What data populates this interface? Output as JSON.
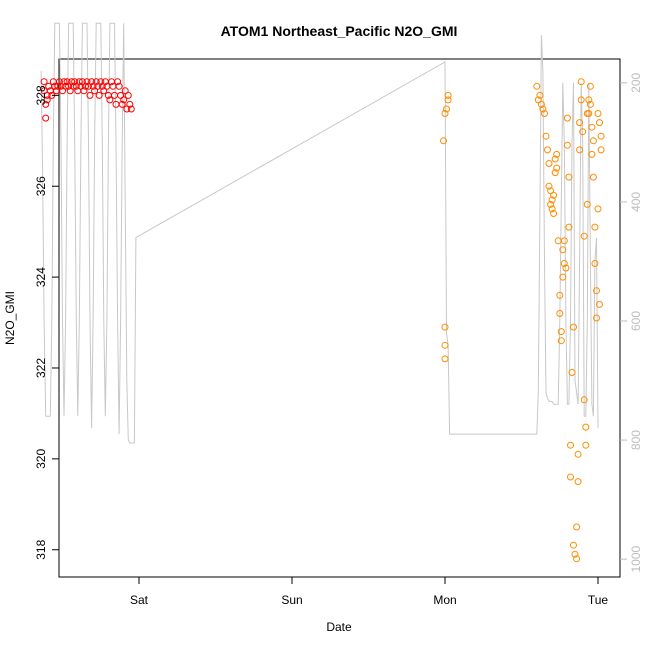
{
  "chart_data": {
    "type": "scatter",
    "title": "ATOM1 Northeast_Pacific N2O_GMI",
    "xlabel": "Date",
    "ylabel": "N2O_GMI",
    "x_ticks": [
      "Sat",
      "Sun",
      "Mon",
      "Tue"
    ],
    "ylim": [
      317.4,
      328.8
    ],
    "y_ticks": [
      318,
      320,
      322,
      324,
      326,
      328
    ],
    "y2lim": [
      1030,
      160
    ],
    "y2_ticks": [
      200,
      400,
      600,
      800,
      1000
    ],
    "colors": {
      "series_red": "#ff0000",
      "series_orange": "#ff8c00",
      "line": "#c8c8c8",
      "right_axis": "#bdbdbd"
    },
    "series": [
      {
        "color": "#ff0000",
        "points": [
          [
            0.38,
            328.3
          ],
          [
            0.38,
            328.1
          ],
          [
            0.39,
            327.8
          ],
          [
            0.39,
            327.5
          ],
          [
            0.4,
            327.9
          ],
          [
            0.4,
            328.0
          ],
          [
            0.41,
            328.2
          ],
          [
            0.42,
            328.1
          ],
          [
            0.43,
            328.0
          ],
          [
            0.44,
            328.3
          ],
          [
            0.45,
            328.2
          ],
          [
            0.46,
            328.1
          ],
          [
            0.47,
            328.2
          ],
          [
            0.48,
            328.3
          ],
          [
            0.49,
            328.2
          ],
          [
            0.5,
            328.1
          ],
          [
            0.51,
            328.3
          ],
          [
            0.52,
            328.2
          ],
          [
            0.53,
            328.3
          ],
          [
            0.54,
            328.2
          ],
          [
            0.55,
            328.1
          ],
          [
            0.56,
            328.3
          ],
          [
            0.57,
            328.2
          ],
          [
            0.58,
            328.3
          ],
          [
            0.59,
            328.2
          ],
          [
            0.6,
            328.1
          ],
          [
            0.61,
            328.3
          ],
          [
            0.62,
            328.2
          ],
          [
            0.63,
            328.3
          ],
          [
            0.64,
            328.1
          ],
          [
            0.65,
            328.2
          ],
          [
            0.66,
            328.3
          ],
          [
            0.67,
            328.2
          ],
          [
            0.68,
            328.0
          ],
          [
            0.69,
            328.3
          ],
          [
            0.7,
            328.2
          ],
          [
            0.71,
            328.1
          ],
          [
            0.72,
            328.3
          ],
          [
            0.73,
            328.2
          ],
          [
            0.74,
            328.0
          ],
          [
            0.75,
            328.3
          ],
          [
            0.76,
            328.2
          ],
          [
            0.77,
            328.1
          ],
          [
            0.78,
            328.3
          ],
          [
            0.79,
            328.2
          ],
          [
            0.8,
            328.0
          ],
          [
            0.81,
            327.9
          ],
          [
            0.82,
            328.3
          ],
          [
            0.83,
            328.2
          ],
          [
            0.84,
            328.0
          ],
          [
            0.85,
            327.8
          ],
          [
            0.86,
            328.3
          ],
          [
            0.87,
            328.2
          ],
          [
            0.88,
            328.0
          ],
          [
            0.89,
            327.8
          ],
          [
            0.9,
            327.9
          ],
          [
            0.91,
            328.1
          ],
          [
            0.92,
            327.7
          ],
          [
            0.93,
            328.0
          ],
          [
            0.94,
            327.8
          ],
          [
            0.95,
            327.7
          ]
        ]
      },
      {
        "color": "#ff8c00",
        "points": [
          [
            2.99,
            327.0
          ],
          [
            3.0,
            327.6
          ],
          [
            3.0,
            322.9
          ],
          [
            3.0,
            322.5
          ],
          [
            3.0,
            322.2
          ],
          [
            3.01,
            327.7
          ],
          [
            3.02,
            327.9
          ],
          [
            3.02,
            328.0
          ],
          [
            3.6,
            328.2
          ],
          [
            3.61,
            327.9
          ],
          [
            3.62,
            328.0
          ],
          [
            3.63,
            327.8
          ],
          [
            3.64,
            327.7
          ],
          [
            3.65,
            327.6
          ],
          [
            3.66,
            327.1
          ],
          [
            3.67,
            326.8
          ],
          [
            3.68,
            326.5
          ],
          [
            3.68,
            326.0
          ],
          [
            3.69,
            325.9
          ],
          [
            3.69,
            325.6
          ],
          [
            3.7,
            325.7
          ],
          [
            3.7,
            325.5
          ],
          [
            3.71,
            325.4
          ],
          [
            3.71,
            325.8
          ],
          [
            3.72,
            326.3
          ],
          [
            3.72,
            326.6
          ],
          [
            3.73,
            326.7
          ],
          [
            3.73,
            326.4
          ],
          [
            3.74,
            324.8
          ],
          [
            3.75,
            323.6
          ],
          [
            3.75,
            323.2
          ],
          [
            3.76,
            322.8
          ],
          [
            3.76,
            322.6
          ],
          [
            3.77,
            324.0
          ],
          [
            3.77,
            324.6
          ],
          [
            3.78,
            324.3
          ],
          [
            3.78,
            324.8
          ],
          [
            3.79,
            324.2
          ],
          [
            3.8,
            327.5
          ],
          [
            3.8,
            326.9
          ],
          [
            3.81,
            326.2
          ],
          [
            3.81,
            325.1
          ],
          [
            3.82,
            320.3
          ],
          [
            3.82,
            319.6
          ],
          [
            3.83,
            321.9
          ],
          [
            3.84,
            322.9
          ],
          [
            3.84,
            318.1
          ],
          [
            3.85,
            317.9
          ],
          [
            3.86,
            317.8
          ],
          [
            3.86,
            318.5
          ],
          [
            3.87,
            319.5
          ],
          [
            3.87,
            320.1
          ],
          [
            3.88,
            326.8
          ],
          [
            3.88,
            327.4
          ],
          [
            3.89,
            328.3
          ],
          [
            3.89,
            327.9
          ],
          [
            3.9,
            327.2
          ],
          [
            3.91,
            324.9
          ],
          [
            3.91,
            321.3
          ],
          [
            3.92,
            320.3
          ],
          [
            3.92,
            320.7
          ],
          [
            3.93,
            327.6
          ],
          [
            3.93,
            325.6
          ],
          [
            3.94,
            327.6
          ],
          [
            3.94,
            327.9
          ],
          [
            3.95,
            328.2
          ],
          [
            3.95,
            327.8
          ],
          [
            3.96,
            326.7
          ],
          [
            3.96,
            327.3
          ],
          [
            3.97,
            327.0
          ],
          [
            3.97,
            326.2
          ],
          [
            3.98,
            325.1
          ],
          [
            3.98,
            324.3
          ],
          [
            3.99,
            323.7
          ],
          [
            3.99,
            323.1
          ],
          [
            4.0,
            327.6
          ],
          [
            4.0,
            325.5
          ],
          [
            4.01,
            323.4
          ],
          [
            4.01,
            327.4
          ],
          [
            4.02,
            327.1
          ],
          [
            4.02,
            326.8
          ]
        ]
      }
    ],
    "line_series": {
      "axis": "right",
      "points": [
        [
          0.36,
          180
        ],
        [
          0.37,
          350
        ],
        [
          0.38,
          600
        ],
        [
          0.39,
          760
        ],
        [
          0.4,
          760
        ],
        [
          0.42,
          760
        ],
        [
          0.43,
          600
        ],
        [
          0.44,
          300
        ],
        [
          0.45,
          100
        ],
        [
          0.48,
          100
        ],
        [
          0.49,
          300
        ],
        [
          0.5,
          600
        ],
        [
          0.51,
          760
        ],
        [
          0.52,
          600
        ],
        [
          0.53,
          300
        ],
        [
          0.54,
          100
        ],
        [
          0.57,
          100
        ],
        [
          0.58,
          300
        ],
        [
          0.59,
          600
        ],
        [
          0.6,
          760
        ],
        [
          0.61,
          600
        ],
        [
          0.62,
          300
        ],
        [
          0.63,
          100
        ],
        [
          0.66,
          100
        ],
        [
          0.67,
          300
        ],
        [
          0.68,
          600
        ],
        [
          0.69,
          780
        ],
        [
          0.7,
          600
        ],
        [
          0.71,
          300
        ],
        [
          0.72,
          100
        ],
        [
          0.75,
          100
        ],
        [
          0.76,
          300
        ],
        [
          0.77,
          600
        ],
        [
          0.78,
          760
        ],
        [
          0.79,
          600
        ],
        [
          0.8,
          300
        ],
        [
          0.81,
          100
        ],
        [
          0.84,
          100
        ],
        [
          0.85,
          300
        ],
        [
          0.86,
          600
        ],
        [
          0.87,
          790
        ],
        [
          0.88,
          600
        ],
        [
          0.89,
          300
        ],
        [
          0.9,
          100
        ],
        [
          0.91,
          400
        ],
        [
          0.92,
          700
        ],
        [
          0.93,
          800
        ],
        [
          0.94,
          805
        ],
        [
          0.95,
          805
        ],
        [
          0.96,
          805
        ],
        [
          0.97,
          805
        ],
        [
          0.98,
          460
        ],
        [
          3.0,
          165
        ],
        [
          3.01,
          620
        ],
        [
          3.02,
          640
        ],
        [
          3.03,
          790
        ],
        [
          3.6,
          790
        ],
        [
          3.61,
          720
        ],
        [
          3.62,
          420
        ],
        [
          3.63,
          120
        ],
        [
          3.64,
          180
        ],
        [
          3.65,
          500
        ],
        [
          3.66,
          720
        ],
        [
          3.67,
          730
        ],
        [
          3.68,
          735
        ],
        [
          3.7,
          735
        ],
        [
          3.71,
          740
        ],
        [
          3.72,
          740
        ],
        [
          3.74,
          740
        ],
        [
          3.75,
          600
        ],
        [
          3.76,
          400
        ],
        [
          3.77,
          200
        ],
        [
          3.78,
          300
        ],
        [
          3.79,
          600
        ],
        [
          3.8,
          740
        ],
        [
          3.81,
          740
        ],
        [
          3.82,
          600
        ],
        [
          3.83,
          300
        ],
        [
          3.84,
          200
        ],
        [
          3.85,
          700
        ],
        [
          3.86,
          720
        ],
        [
          3.87,
          740
        ],
        [
          3.88,
          500
        ],
        [
          3.89,
          200
        ],
        [
          3.9,
          300
        ],
        [
          3.91,
          760
        ],
        [
          3.92,
          760
        ],
        [
          3.93,
          600
        ],
        [
          3.94,
          200
        ],
        [
          3.95,
          500
        ],
        [
          3.96,
          740
        ],
        [
          3.97,
          760
        ],
        [
          3.98,
          500
        ],
        [
          3.99,
          460
        ],
        [
          4.0,
          780
        ]
      ]
    }
  }
}
